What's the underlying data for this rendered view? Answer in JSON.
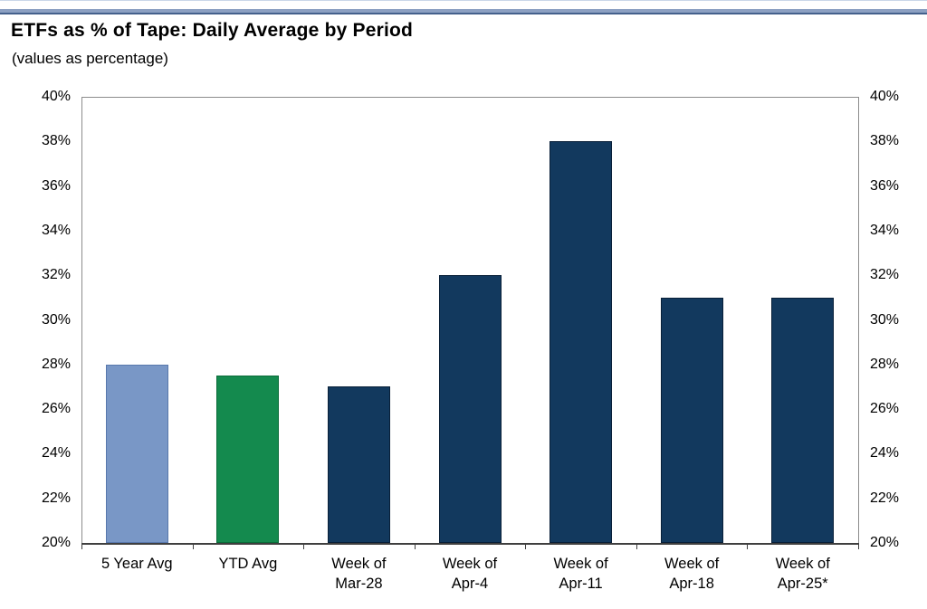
{
  "chart_data": {
    "type": "bar",
    "title": "ETFs as % of Tape: Daily Average by Period",
    "subtitle": "(values as percentage)",
    "categories": [
      "5 Year Avg",
      "YTD Avg",
      "Week of\nMar-28",
      "Week of\nApr-4",
      "Week of\nApr-11",
      "Week of\nApr-18",
      "Week of\nApr-25*"
    ],
    "values": [
      28,
      27.5,
      27,
      32,
      38,
      31,
      31
    ],
    "bar_colors": [
      "#7997C6",
      "#148A4E",
      "#12395E",
      "#12395E",
      "#12395E",
      "#12395E",
      "#12395E"
    ],
    "bar_border_colors": [
      "#5878AC",
      "#0A6B39",
      "#081F38",
      "#081F38",
      "#081F38",
      "#081F38",
      "#081F38"
    ],
    "ylim": [
      20,
      40
    ],
    "ytick_step": 2,
    "ytick_suffix": "%",
    "y_axis_sides": [
      "left",
      "right"
    ],
    "xlabel": "",
    "ylabel": "",
    "grid": false,
    "legend": false
  },
  "style": {
    "accent_rule_color": "#8CA0C2",
    "accent_rule_edge_color": "#44608C",
    "top_edge_line_color": "#CAD7E9",
    "plot_border_color": "#8C8C8C",
    "axis_line_color": "#3F3F3F",
    "text_color": "#000000",
    "background_color": "#FFFFFF"
  }
}
